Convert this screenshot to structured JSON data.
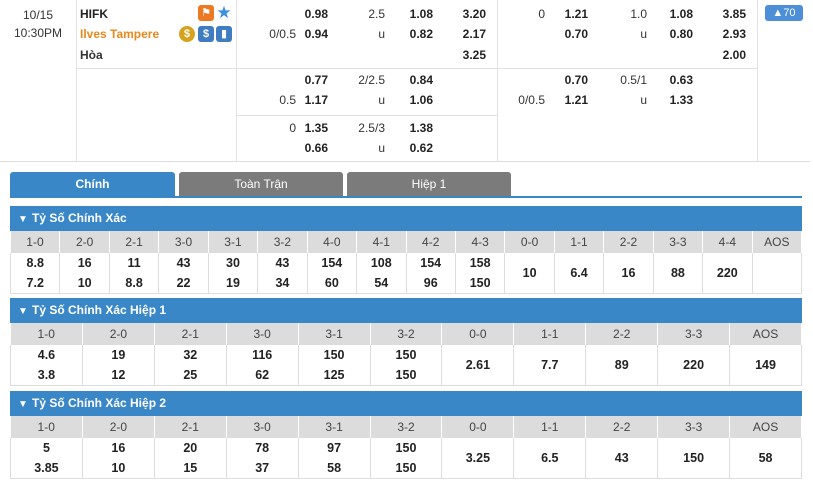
{
  "match": {
    "date": "10/15",
    "time": "10:30PM",
    "home": "HIFK",
    "away": "Ilves Tampere",
    "draw": "Hòa",
    "badge": "70"
  },
  "odds": {
    "r1": {
      "ah_line": "0/0.5",
      "ah_home": "0.98",
      "ah_away": "0.94",
      "ou_line": "2.5",
      "ou_u": "u",
      "ou_over": "1.08",
      "ou_under": "0.82",
      "x1": "3.20",
      "x2": "2.17",
      "x3": "3.25",
      "h_ah_line": "0",
      "h_ah_home": "1.21",
      "h_ah_away": "0.70",
      "h_ou_line": "1.0",
      "h_ou_u": "u",
      "h_ou_over": "1.08",
      "h_ou_under": "0.80",
      "h_x1": "3.85",
      "h_x2": "2.93",
      "h_x3": "2.00"
    },
    "r2": {
      "ah_line": "0.5",
      "ah_home": "0.77",
      "ah_away": "1.17",
      "ou_line": "2/2.5",
      "ou_u": "u",
      "ou_over": "0.84",
      "ou_under": "1.06",
      "h_ah_line": "0/0.5",
      "h_ah_home": "0.70",
      "h_ah_away": "1.21",
      "h_ou_line": "0.5/1",
      "h_ou_u": "u",
      "h_ou_over": "0.63",
      "h_ou_under": "1.33"
    },
    "r3": {
      "ah_line": "0",
      "ah_home": "1.35",
      "ah_away": "0.66",
      "ou_line": "2.5/3",
      "ou_u": "u",
      "ou_over": "1.38",
      "ou_under": "0.62"
    }
  },
  "tabs": [
    "Chính",
    "Toàn Trận",
    "Hiệp 1"
  ],
  "sections": [
    {
      "title": "Tỷ Số Chính Xác",
      "headers": [
        "1-0",
        "2-0",
        "2-1",
        "3-0",
        "3-1",
        "3-2",
        "4-0",
        "4-1",
        "4-2",
        "4-3",
        "0-0",
        "1-1",
        "2-2",
        "3-3",
        "4-4",
        "AOS"
      ],
      "top": [
        "8.8",
        "16",
        "11",
        "43",
        "30",
        "43",
        "154",
        "108",
        "154",
        "158",
        "",
        "",
        "",
        "",
        "",
        ""
      ],
      "bottom": [
        "7.2",
        "10",
        "8.8",
        "22",
        "19",
        "34",
        "60",
        "54",
        "96",
        "150",
        "",
        "",
        "",
        "",
        "",
        ""
      ],
      "single": [
        "",
        "",
        "",
        "",
        "",
        "",
        "",
        "",
        "",
        "",
        "10",
        "6.4",
        "16",
        "88",
        "220"
      ]
    },
    {
      "title": "Tỷ Số Chính Xác Hiệp 1",
      "headers": [
        "1-0",
        "2-0",
        "2-1",
        "3-0",
        "3-1",
        "3-2",
        "0-0",
        "1-1",
        "2-2",
        "3-3",
        "AOS"
      ],
      "top": [
        "4.6",
        "19",
        "32",
        "116",
        "150",
        "150"
      ],
      "bottom": [
        "3.8",
        "12",
        "25",
        "62",
        "125",
        "150"
      ],
      "single": [
        "2.61",
        "7.7",
        "89",
        "220",
        "149"
      ]
    },
    {
      "title": "Tỷ Số Chính Xác Hiệp 2",
      "headers": [
        "1-0",
        "2-0",
        "2-1",
        "3-0",
        "3-1",
        "3-2",
        "0-0",
        "1-1",
        "2-2",
        "3-3",
        "AOS"
      ],
      "top": [
        "5",
        "16",
        "20",
        "78",
        "97",
        "150"
      ],
      "bottom": [
        "3.85",
        "10",
        "15",
        "37",
        "58",
        "150"
      ],
      "single": [
        "3.25",
        "6.5",
        "43",
        "150",
        "58"
      ]
    }
  ]
}
